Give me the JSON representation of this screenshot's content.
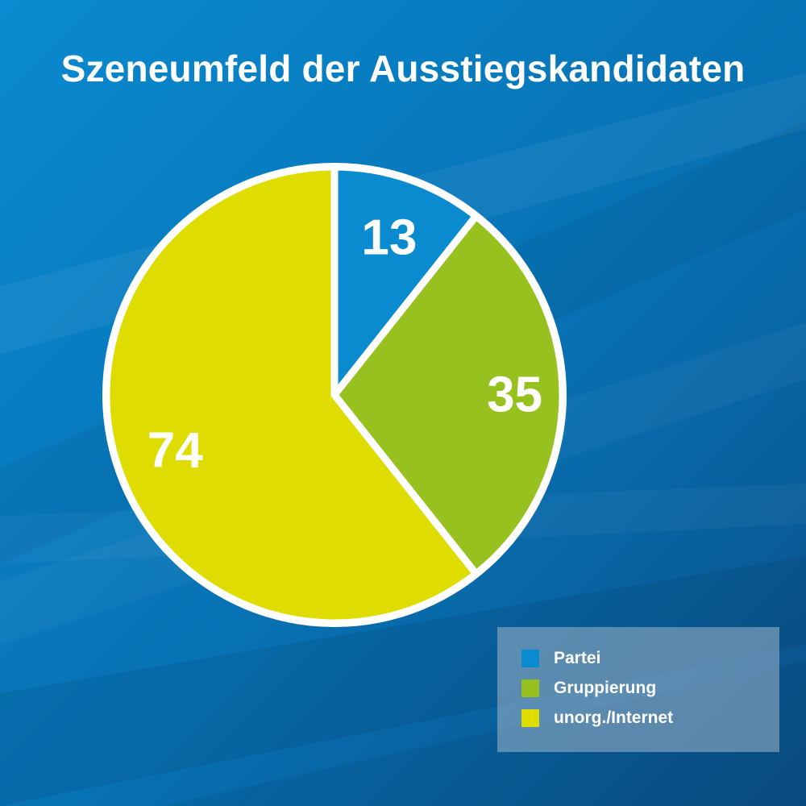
{
  "colors": {
    "partei": "#0a8bd0",
    "gruppierung": "#96c11f",
    "internet": "#dedc00",
    "outline": "#ffffff"
  },
  "chart_data": {
    "type": "pie",
    "title": "Szeneumfeld der Ausstiegskandidaten",
    "categories": [
      "Partei",
      "Gruppierung",
      "unorg./Internet"
    ],
    "values": [
      13,
      35,
      74
    ],
    "legend": "bottom-right"
  }
}
